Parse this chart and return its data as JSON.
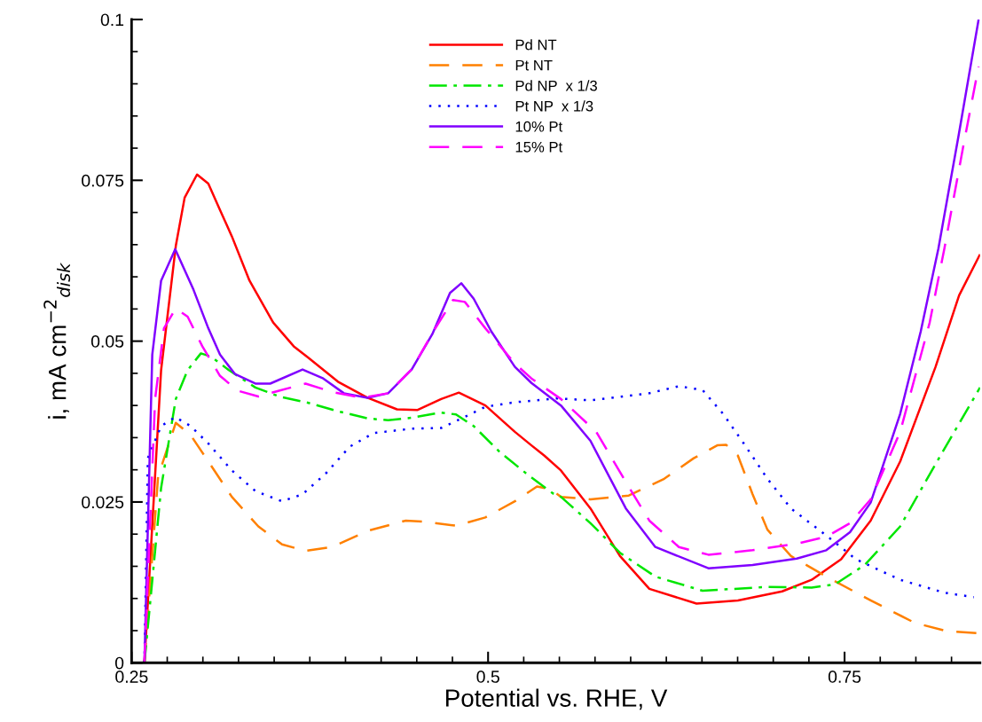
{
  "chart_data": {
    "type": "line",
    "xlabel": "Potential vs. RHE, V",
    "ylabel": "i, mA cm$^{−2}$$_{disk}$",
    "xlim": [
      0.25,
      0.845
    ],
    "ylim": [
      0,
      0.1
    ],
    "xticks": [
      0.25,
      {
        "value": 0.275,
        "label": null
      },
      {
        "value": 0.3,
        "label": null
      },
      {
        "value": 0.325,
        "label": null
      },
      {
        "value": 0.35,
        "label": null
      },
      {
        "value": 0.375,
        "label": null
      },
      {
        "value": 0.4,
        "label": null
      },
      {
        "value": 0.425,
        "label": null
      },
      {
        "value": 0.45,
        "label": null
      },
      {
        "value": 0.475,
        "label": null
      },
      0.5,
      {
        "value": 0.525,
        "label": null
      },
      {
        "value": 0.55,
        "label": null
      },
      {
        "value": 0.575,
        "label": null
      },
      {
        "value": 0.6,
        "label": null
      },
      {
        "value": 0.625,
        "label": null
      },
      {
        "value": 0.65,
        "label": null
      },
      {
        "value": 0.675,
        "label": null
      },
      {
        "value": 0.7,
        "label": null
      },
      {
        "value": 0.725,
        "label": null
      },
      0.75,
      {
        "value": 0.775,
        "label": null
      },
      {
        "value": 0.8,
        "label": null
      },
      {
        "value": 0.825,
        "label": null
      }
    ],
    "yticks": [
      0,
      {
        "value": 0.005,
        "label": null
      },
      {
        "value": 0.01,
        "label": null
      },
      {
        "value": 0.015,
        "label": null
      },
      {
        "value": 0.02,
        "label": null
      },
      0.025,
      {
        "value": 0.03,
        "label": null
      },
      {
        "value": 0.035,
        "label": null
      },
      {
        "value": 0.04,
        "label": null
      },
      {
        "value": 0.045,
        "label": null
      },
      0.05,
      {
        "value": 0.055,
        "label": null
      },
      {
        "value": 0.06,
        "label": null
      },
      {
        "value": 0.065,
        "label": null
      },
      {
        "value": 0.07,
        "label": null
      },
      0.075,
      {
        "value": 0.08,
        "label": null
      },
      {
        "value": 0.085,
        "label": null
      },
      {
        "value": 0.09,
        "label": null
      },
      {
        "value": 0.095,
        "label": null
      },
      0.1
    ],
    "grid": false,
    "legend": "top",
    "marker": "none",
    "series": [
      {
        "name": "Pd NT",
        "color": "#ff0000",
        "line_style": "solid",
        "x": [
          0.259,
          0.2707,
          0.281,
          0.2872,
          0.2959,
          0.3038,
          0.312,
          0.3203,
          0.3327,
          0.3493,
          0.3637,
          0.3741,
          0.3947,
          0.4154,
          0.4361,
          0.4506,
          0.4671,
          0.4795,
          0.4981,
          0.5188,
          0.5304,
          0.5395,
          0.5511,
          0.5718,
          0.5925,
          0.6131,
          0.6462,
          0.6752,
          0.7062,
          0.7269,
          0.7476,
          0.7683,
          0.789,
          0.8138,
          0.8303,
          0.845
        ],
        "values": [
          0,
          0.0455,
          0.0648,
          0.0723,
          0.0759,
          0.0745,
          0.0704,
          0.0663,
          0.0594,
          0.0529,
          0.0492,
          0.0474,
          0.0437,
          0.0412,
          0.0394,
          0.0393,
          0.041,
          0.042,
          0.04,
          0.0359,
          0.0338,
          0.0322,
          0.0299,
          0.024,
          0.0166,
          0.0115,
          0.0092,
          0.0097,
          0.0111,
          0.0129,
          0.0161,
          0.0221,
          0.0313,
          0.046,
          0.0571,
          0.0635
        ]
      },
      {
        "name": "Pt NT",
        "color": "#ff8000",
        "line_style": "dashed",
        "x": [
          0.259,
          0.2686,
          0.281,
          0.2914,
          0.3038,
          0.3203,
          0.3389,
          0.3555,
          0.372,
          0.3906,
          0.4154,
          0.4423,
          0.4568,
          0.4775,
          0.4981,
          0.5188,
          0.5343,
          0.5436,
          0.5511,
          0.5718,
          0.5987,
          0.6235,
          0.6442,
          0.6607,
          0.6669,
          0.6752,
          0.6855,
          0.6959,
          0.7124,
          0.7372,
          0.7683,
          0.7993,
          0.8221,
          0.845
        ],
        "values": [
          0,
          0.029,
          0.0373,
          0.0354,
          0.0313,
          0.0258,
          0.0212,
          0.0184,
          0.0174,
          0.018,
          0.0205,
          0.0221,
          0.0219,
          0.0213,
          0.0226,
          0.0251,
          0.0274,
          0.027,
          0.0258,
          0.0254,
          0.026,
          0.0286,
          0.0318,
          0.0338,
          0.0339,
          0.0322,
          0.0262,
          0.0207,
          0.0166,
          0.0134,
          0.0097,
          0.0062,
          0.0049,
          0.0046
        ]
      },
      {
        "name": "Pd NP  x 1/3",
        "color": "#00e600",
        "line_style": "dashdot",
        "x": [
          0.259,
          0.2707,
          0.281,
          0.2893,
          0.2986,
          0.3058,
          0.3182,
          0.3368,
          0.3534,
          0.3741,
          0.3947,
          0.4154,
          0.4299,
          0.4464,
          0.4671,
          0.4775,
          0.4899,
          0.5085,
          0.5292,
          0.5457,
          0.5511,
          0.5718,
          0.5925,
          0.6173,
          0.6504,
          0.6959,
          0.7269,
          0.7434,
          0.7641,
          0.789,
          0.8138,
          0.845
        ],
        "values": [
          0,
          0.0272,
          0.041,
          0.0455,
          0.0481,
          0.0476,
          0.0455,
          0.0428,
          0.0414,
          0.0404,
          0.0391,
          0.038,
          0.0377,
          0.0381,
          0.0389,
          0.0386,
          0.0368,
          0.0327,
          0.029,
          0.0263,
          0.0258,
          0.0217,
          0.0171,
          0.0134,
          0.0112,
          0.0118,
          0.0117,
          0.0122,
          0.0152,
          0.0212,
          0.0309,
          0.0428
        ]
      },
      {
        "name": "Pt NP  x 1/3",
        "color": "#0000ff",
        "line_style": "dotted",
        "x": [
          0.259,
          0.2614,
          0.2707,
          0.2806,
          0.2914,
          0.3038,
          0.3203,
          0.3368,
          0.3555,
          0.3699,
          0.3865,
          0.403,
          0.4196,
          0.4464,
          0.4671,
          0.4816,
          0.4981,
          0.5188,
          0.5478,
          0.5718,
          0.6131,
          0.6338,
          0.6504,
          0.6648,
          0.6793,
          0.6959,
          0.7124,
          0.7372,
          0.7579,
          0.789,
          0.82,
          0.8407
        ],
        "values": [
          0,
          0.0318,
          0.0368,
          0.0382,
          0.0368,
          0.0341,
          0.0299,
          0.0267,
          0.0251,
          0.0262,
          0.0295,
          0.0336,
          0.0357,
          0.0364,
          0.0365,
          0.038,
          0.0398,
          0.0405,
          0.0411,
          0.0408,
          0.0419,
          0.043,
          0.0424,
          0.0387,
          0.0341,
          0.0286,
          0.024,
          0.0198,
          0.0161,
          0.0129,
          0.0109,
          0.0102
        ]
      },
      {
        "name": "10% Pt",
        "color": "#8000ff",
        "line_style": "solid",
        "x": [
          0.259,
          0.2645,
          0.2707,
          0.2806,
          0.2934,
          0.3038,
          0.312,
          0.3224,
          0.3368,
          0.3472,
          0.3699,
          0.3844,
          0.3989,
          0.4154,
          0.4299,
          0.4464,
          0.4609,
          0.4733,
          0.4812,
          0.4899,
          0.5023,
          0.5188,
          0.5304,
          0.5511,
          0.5718,
          0.5966,
          0.6173,
          0.6545,
          0.6855,
          0.7165,
          0.7372,
          0.7538,
          0.7683,
          0.789,
          0.8034,
          0.8158,
          0.83,
          0.844
        ],
        "values": [
          0,
          0.0479,
          0.0594,
          0.0643,
          0.058,
          0.052,
          0.0479,
          0.0449,
          0.0434,
          0.0434,
          0.0456,
          0.0442,
          0.0419,
          0.0412,
          0.0419,
          0.0456,
          0.0511,
          0.0575,
          0.059,
          0.0566,
          0.0515,
          0.046,
          0.0435,
          0.04,
          0.0345,
          0.024,
          0.018,
          0.0147,
          0.0152,
          0.0162,
          0.0175,
          0.0203,
          0.0249,
          0.0387,
          0.0515,
          0.0644,
          0.082,
          0.1
        ]
      },
      {
        "name": "15% Pt",
        "color": "#ff00ff",
        "line_style": "dashed",
        "x": [
          0.259,
          0.2665,
          0.2727,
          0.281,
          0.2893,
          0.2996,
          0.312,
          0.3244,
          0.3389,
          0.3534,
          0.372,
          0.3906,
          0.4113,
          0.4299,
          0.4464,
          0.463,
          0.4754,
          0.4837,
          0.4981,
          0.5188,
          0.5304,
          0.5511,
          0.5759,
          0.5966,
          0.6131,
          0.6338,
          0.6545,
          0.6855,
          0.7165,
          0.7372,
          0.7538,
          0.7683,
          0.789,
          0.8097,
          0.82,
          0.833,
          0.844
        ],
        "values": [
          0,
          0.041,
          0.052,
          0.0551,
          0.0538,
          0.0492,
          0.0446,
          0.0423,
          0.0414,
          0.0423,
          0.0434,
          0.0421,
          0.0412,
          0.0419,
          0.0456,
          0.052,
          0.0564,
          0.0561,
          0.052,
          0.0465,
          0.0442,
          0.041,
          0.0359,
          0.0281,
          0.0221,
          0.018,
          0.0168,
          0.0175,
          0.0185,
          0.0196,
          0.0217,
          0.0254,
          0.0359,
          0.0529,
          0.0644,
          0.08,
          0.0927
        ]
      }
    ]
  }
}
